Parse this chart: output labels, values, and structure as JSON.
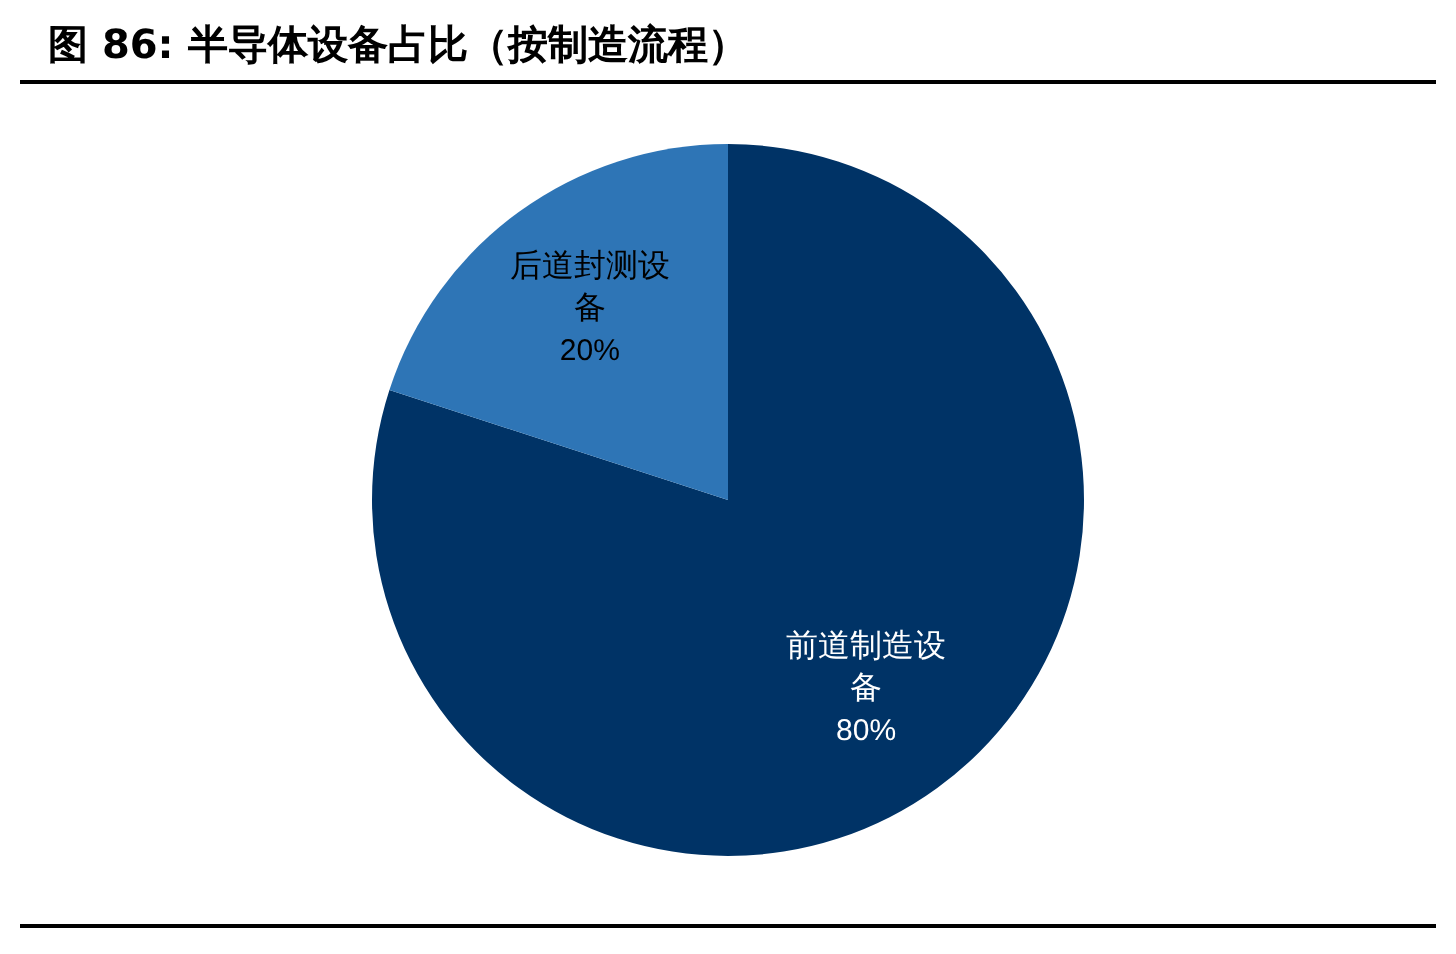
{
  "chart_data": {
    "type": "pie",
    "title": "图 86: 半导体设备占比（按制造流程）",
    "categories": [
      "前道制造设备",
      "后道封测设备"
    ],
    "values": [
      80,
      20
    ],
    "colors": [
      "#003366",
      "#2e75b6"
    ],
    "value_labels": [
      "80%",
      "20%"
    ],
    "legend": false
  }
}
